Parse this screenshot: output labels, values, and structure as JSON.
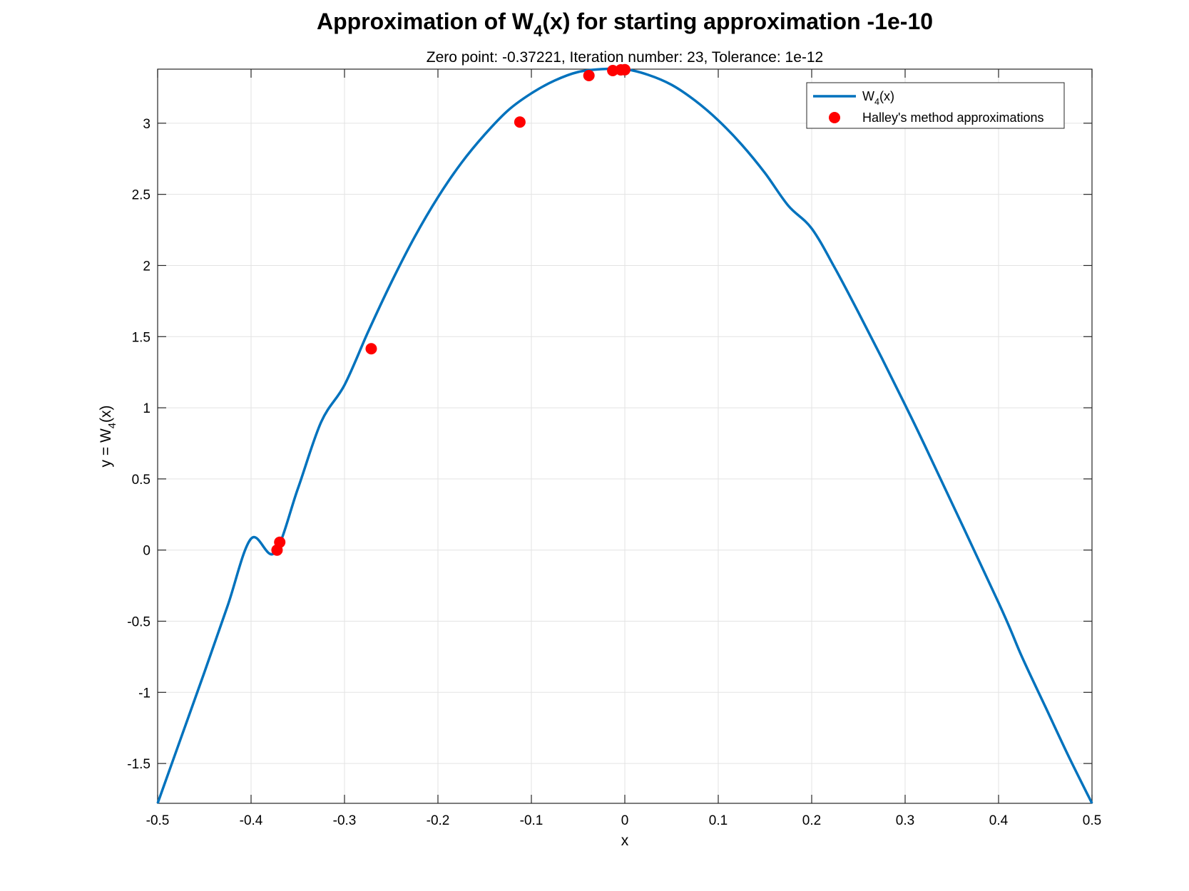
{
  "chart_data": {
    "type": "line",
    "title": {
      "prefix": "Approximation of W",
      "subscript": "4",
      "suffix": "(x) for starting approximation -1e-10"
    },
    "subtitle": "Zero point: -0.37221, Iteration number: 23, Tolerance: 1e-12",
    "xlabel": "x",
    "ylabel": {
      "prefix": "y = W",
      "subscript": "4",
      "suffix": "(x)"
    },
    "xlim": [
      -0.5,
      0.5
    ],
    "ylim": [
      -1.78,
      3.38
    ],
    "xticks": [
      -0.5,
      -0.4,
      -0.3,
      -0.2,
      -0.1,
      0,
      0.1,
      0.2,
      0.3,
      0.4,
      0.5
    ],
    "xtick_labels": [
      "-0.5",
      "-0.4",
      "-0.3",
      "-0.2",
      "-0.1",
      "0",
      "0.1",
      "0.2",
      "0.3",
      "0.4",
      "0.5"
    ],
    "yticks": [
      -1.5,
      -1,
      -0.5,
      0,
      0.5,
      1,
      1.5,
      2,
      2.5,
      3
    ],
    "ytick_labels": [
      "-1.5",
      "-1",
      "-0.5",
      "0",
      "0.5",
      "1",
      "1.5",
      "2",
      "2.5",
      "3"
    ],
    "grid": true,
    "legend_position": "top-right",
    "series": [
      {
        "name": {
          "prefix": "W",
          "subscript": "4",
          "suffix": "(x)"
        },
        "kind": "line",
        "color": "#0072BD",
        "x": [
          -0.5,
          -0.475,
          -0.45,
          -0.425,
          -0.4,
          -0.375,
          -0.35,
          -0.325,
          -0.3,
          -0.275,
          -0.25,
          -0.225,
          -0.2,
          -0.175,
          -0.15,
          -0.125,
          -0.1,
          -0.075,
          -0.05,
          -0.025,
          0,
          0.025,
          0.05,
          0.075,
          0.1,
          0.125,
          0.15,
          0.175,
          0.2,
          0.225,
          0.25,
          0.275,
          0.3,
          0.325,
          0.4,
          0.425,
          0.45,
          0.475,
          0.5
        ],
        "y": [
          -1.78,
          -1.32,
          -0.86,
          -0.39,
          0.08,
          -0.02,
          0.43,
          0.9,
          1.16,
          1.53,
          1.88,
          2.2,
          2.48,
          2.72,
          2.92,
          3.09,
          3.21,
          3.3,
          3.36,
          3.38,
          3.38,
          3.34,
          3.27,
          3.16,
          3.02,
          2.85,
          2.65,
          2.42,
          2.26,
          1.98,
          1.67,
          1.35,
          1.02,
          0.68,
          -0.37,
          -0.75,
          -1.1,
          -1.45,
          -1.78
        ]
      },
      {
        "name": "Halley's method approximations",
        "kind": "scatter",
        "color": "#FF0000",
        "x": [
          -0.3722,
          -0.3693,
          -0.2714,
          -0.1123,
          -0.0384,
          -0.0129,
          -0.0043,
          0.0
        ],
        "y": [
          0.0,
          0.055,
          1.415,
          3.008,
          3.335,
          3.37,
          3.375,
          3.376
        ]
      }
    ]
  }
}
